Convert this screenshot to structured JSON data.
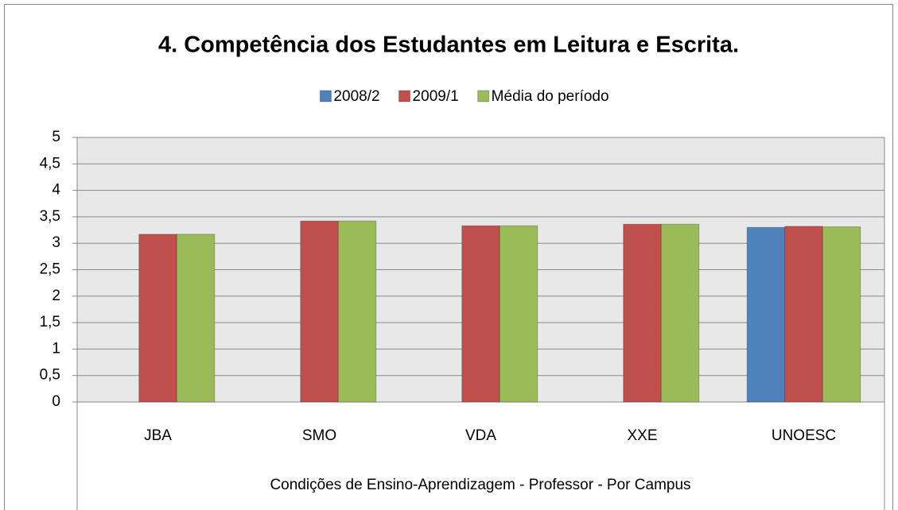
{
  "chart_data": {
    "type": "bar",
    "title": "4. Competência dos Estudantes em Leitura e Escrita.",
    "x_label": "Condições de Ensino-Aprendizagem - Professor - Por Campus",
    "categories": [
      "JBA",
      "SMO",
      "VDA",
      "XXE",
      "UNOESC"
    ],
    "series": [
      {
        "name": "2008/2",
        "color": "#4f81bd",
        "values": [
          null,
          null,
          null,
          null,
          3.3
        ]
      },
      {
        "name": "2009/1",
        "color": "#c0504d",
        "values": [
          3.17,
          3.42,
          3.33,
          3.36,
          3.32
        ]
      },
      {
        "name": "Média do período",
        "color": "#9bbb59",
        "values": [
          3.17,
          3.42,
          3.33,
          3.36,
          3.31
        ]
      }
    ],
    "ylim": [
      0,
      5
    ],
    "yticks": [
      0,
      {
        "value": 0.5,
        "label": "0,5"
      },
      1,
      {
        "value": 1.5,
        "label": "1,5"
      },
      2,
      {
        "value": 2.5,
        "label": "2,5"
      },
      3,
      {
        "value": 3.5,
        "label": "3,5"
      },
      4,
      {
        "value": 4.5,
        "label": "4,5"
      },
      5
    ],
    "grid": true,
    "legend": "top"
  }
}
